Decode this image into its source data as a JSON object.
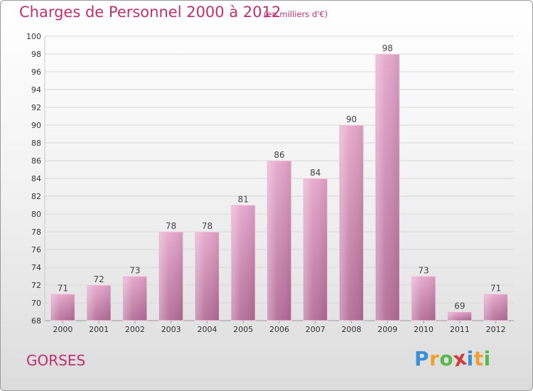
{
  "chart_data": {
    "type": "bar",
    "title": "Charges de Personnel 2000 à 2012",
    "subtitle": "(en milliers d'€)",
    "categories": [
      "2000",
      "2001",
      "2002",
      "2003",
      "2004",
      "2005",
      "2006",
      "2007",
      "2008",
      "2009",
      "2010",
      "2011",
      "2012"
    ],
    "values": [
      71,
      72,
      73,
      78,
      78,
      81,
      86,
      84,
      90,
      98,
      73,
      69,
      71
    ],
    "ylim": [
      68,
      100
    ],
    "yticks": [
      68,
      70,
      72,
      74,
      76,
      78,
      80,
      82,
      84,
      86,
      88,
      90,
      92,
      94,
      96,
      98,
      100
    ],
    "grid": true,
    "colors": {
      "bar_top": "#e6a8cc",
      "bar_bottom": "#b46d98",
      "text": "#c0306f"
    }
  },
  "commune": "GORSES",
  "logo": {
    "letters": [
      "P",
      "r",
      "o",
      "x",
      "i",
      "t",
      "i"
    ],
    "colors": [
      "#3a8fd6",
      "#f0a030",
      "#5ab84a",
      "#d23a3a",
      "#3a8fd6",
      "#f0a030",
      "#5ab84a"
    ]
  }
}
